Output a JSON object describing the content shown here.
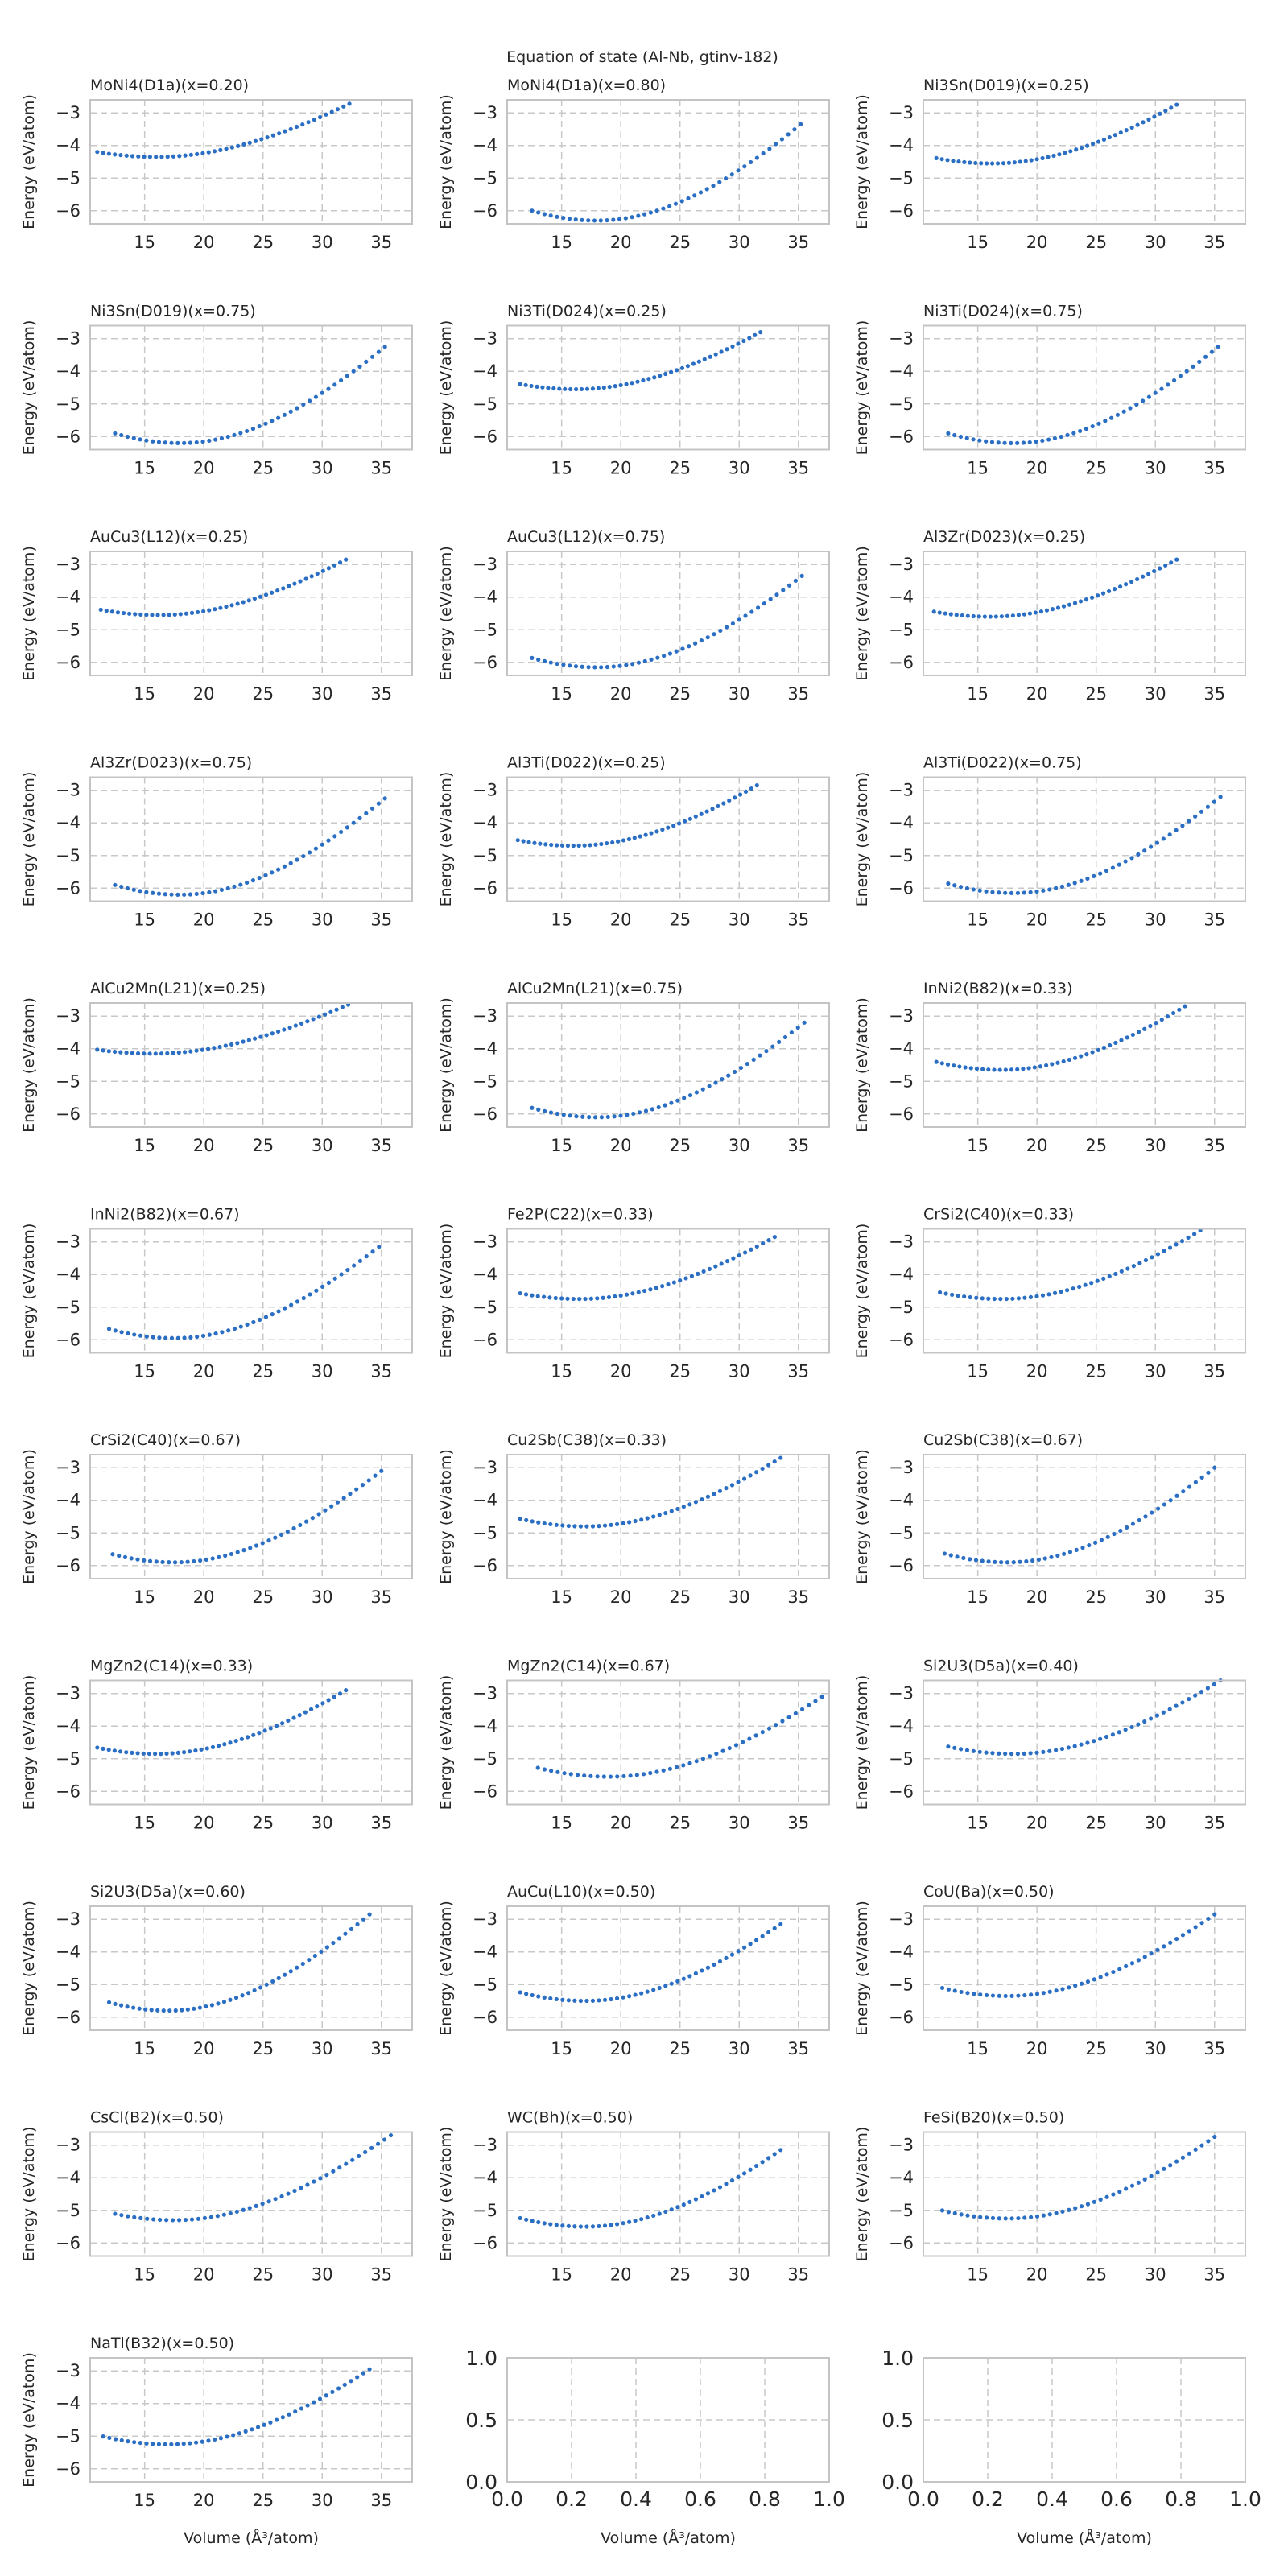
{
  "figure": {
    "suptitle": "Equation of state (Al-Nb, gtinv-182)",
    "xlabel": "Volume (Å³/atom)",
    "ylabel": "Energy (eV/atom)"
  },
  "colors": {
    "series": "#2b6fc4",
    "grid": "#c8c8c8",
    "frame": "#c4c4c4",
    "text": "#262626"
  },
  "chart_data": [
    {
      "type": "scatter",
      "title": "MoNi4(D1a)(x=0.20)",
      "curve": {
        "v0": 16.0,
        "emin": -4.35,
        "vmin": 11.0,
        "vmax": 32.3,
        "emax": -2.72
      },
      "xticks": [
        15,
        20,
        25,
        30,
        35
      ],
      "yticks": [
        -3,
        -4,
        -5,
        -6
      ],
      "xlim": [
        10.4,
        37.6
      ],
      "ylim": [
        -6.4,
        -2.6
      ],
      "xlabel": "",
      "ylabel": "Energy (eV/atom)"
    },
    {
      "type": "scatter",
      "title": "MoNi4(D1a)(x=0.80)",
      "curve": {
        "v0": 18.0,
        "emin": -6.3,
        "vmin": 12.5,
        "vmax": 35.2,
        "emax": -3.35
      },
      "xticks": [
        15,
        20,
        25,
        30,
        35
      ],
      "yticks": [
        -3,
        -4,
        -5,
        -6
      ],
      "xlim": [
        10.4,
        37.6
      ],
      "ylim": [
        -6.4,
        -2.6
      ],
      "xlabel": "",
      "ylabel": "Energy (eV/atom)"
    },
    {
      "type": "scatter",
      "title": "Ni3Sn(D019)(x=0.25)",
      "curve": {
        "v0": 16.2,
        "emin": -4.55,
        "vmin": 11.5,
        "vmax": 31.8,
        "emax": -2.75
      },
      "xticks": [
        15,
        20,
        25,
        30,
        35
      ],
      "yticks": [
        -3,
        -4,
        -5,
        -6
      ],
      "xlim": [
        10.4,
        37.6
      ],
      "ylim": [
        -6.4,
        -2.6
      ],
      "xlabel": "",
      "ylabel": "Energy (eV/atom)"
    },
    {
      "type": "scatter",
      "title": "Ni3Sn(D019)(x=0.75)",
      "curve": {
        "v0": 18.0,
        "emin": -6.2,
        "vmin": 12.5,
        "vmax": 35.3,
        "emax": -3.25
      },
      "xticks": [
        15,
        20,
        25,
        30,
        35
      ],
      "yticks": [
        -3,
        -4,
        -5,
        -6
      ],
      "xlim": [
        10.4,
        37.6
      ],
      "ylim": [
        -6.4,
        -2.6
      ],
      "xlabel": "",
      "ylabel": "Energy (eV/atom)"
    },
    {
      "type": "scatter",
      "title": "Ni3Ti(D024)(x=0.25)",
      "curve": {
        "v0": 16.2,
        "emin": -4.55,
        "vmin": 11.5,
        "vmax": 31.8,
        "emax": -2.8
      },
      "xticks": [
        15,
        20,
        25,
        30,
        35
      ],
      "yticks": [
        -3,
        -4,
        -5,
        -6
      ],
      "xlim": [
        10.4,
        37.6
      ],
      "ylim": [
        -6.4,
        -2.6
      ],
      "xlabel": "",
      "ylabel": "Energy (eV/atom)"
    },
    {
      "type": "scatter",
      "title": "Ni3Ti(D024)(x=0.75)",
      "curve": {
        "v0": 18.0,
        "emin": -6.2,
        "vmin": 12.5,
        "vmax": 35.3,
        "emax": -3.25
      },
      "xticks": [
        15,
        20,
        25,
        30,
        35
      ],
      "yticks": [
        -3,
        -4,
        -5,
        -6
      ],
      "xlim": [
        10.4,
        37.6
      ],
      "ylim": [
        -6.4,
        -2.6
      ],
      "xlabel": "",
      "ylabel": "Energy (eV/atom)"
    },
    {
      "type": "scatter",
      "title": "AuCu3(L12)(x=0.25)",
      "curve": {
        "v0": 16.2,
        "emin": -4.55,
        "vmin": 11.3,
        "vmax": 32.0,
        "emax": -2.85
      },
      "xticks": [
        15,
        20,
        25,
        30,
        35
      ],
      "yticks": [
        -3,
        -4,
        -5,
        -6
      ],
      "xlim": [
        10.4,
        37.6
      ],
      "ylim": [
        -6.4,
        -2.6
      ],
      "xlabel": "",
      "ylabel": "Energy (eV/atom)"
    },
    {
      "type": "scatter",
      "title": "AuCu3(L12)(x=0.75)",
      "curve": {
        "v0": 18.0,
        "emin": -6.15,
        "vmin": 12.5,
        "vmax": 35.3,
        "emax": -3.35
      },
      "xticks": [
        15,
        20,
        25,
        30,
        35
      ],
      "yticks": [
        -3,
        -4,
        -5,
        -6
      ],
      "xlim": [
        10.4,
        37.6
      ],
      "ylim": [
        -6.4,
        -2.6
      ],
      "xlabel": "",
      "ylabel": "Energy (eV/atom)"
    },
    {
      "type": "scatter",
      "title": "Al3Zr(D023)(x=0.25)",
      "curve": {
        "v0": 16.0,
        "emin": -4.6,
        "vmin": 11.3,
        "vmax": 31.8,
        "emax": -2.85
      },
      "xticks": [
        15,
        20,
        25,
        30,
        35
      ],
      "yticks": [
        -3,
        -4,
        -5,
        -6
      ],
      "xlim": [
        10.4,
        37.6
      ],
      "ylim": [
        -6.4,
        -2.6
      ],
      "xlabel": "",
      "ylabel": "Energy (eV/atom)"
    },
    {
      "type": "scatter",
      "title": "Al3Zr(D023)(x=0.75)",
      "curve": {
        "v0": 18.0,
        "emin": -6.2,
        "vmin": 12.5,
        "vmax": 35.3,
        "emax": -3.25
      },
      "xticks": [
        15,
        20,
        25,
        30,
        35
      ],
      "yticks": [
        -3,
        -4,
        -5,
        -6
      ],
      "xlim": [
        10.4,
        37.6
      ],
      "ylim": [
        -6.4,
        -2.6
      ],
      "xlabel": "",
      "ylabel": "Energy (eV/atom)"
    },
    {
      "type": "scatter",
      "title": "Al3Ti(D022)(x=0.25)",
      "curve": {
        "v0": 16.0,
        "emin": -4.7,
        "vmin": 11.3,
        "vmax": 31.5,
        "emax": -2.85
      },
      "xticks": [
        15,
        20,
        25,
        30,
        35
      ],
      "yticks": [
        -3,
        -4,
        -5,
        -6
      ],
      "xlim": [
        10.4,
        37.6
      ],
      "ylim": [
        -6.4,
        -2.6
      ],
      "xlabel": "",
      "ylabel": "Energy (eV/atom)"
    },
    {
      "type": "scatter",
      "title": "Al3Ti(D022)(x=0.75)",
      "curve": {
        "v0": 18.0,
        "emin": -6.15,
        "vmin": 12.5,
        "vmax": 35.5,
        "emax": -3.2
      },
      "xticks": [
        15,
        20,
        25,
        30,
        35
      ],
      "yticks": [
        -3,
        -4,
        -5,
        -6
      ],
      "xlim": [
        10.4,
        37.6
      ],
      "ylim": [
        -6.4,
        -2.6
      ],
      "xlabel": "",
      "ylabel": "Energy (eV/atom)"
    },
    {
      "type": "scatter",
      "title": "AlCu2Mn(L21)(x=0.25)",
      "curve": {
        "v0": 15.7,
        "emin": -4.15,
        "vmin": 11.0,
        "vmax": 32.2,
        "emax": -2.65
      },
      "xticks": [
        15,
        20,
        25,
        30,
        35
      ],
      "yticks": [
        -3,
        -4,
        -5,
        -6
      ],
      "xlim": [
        10.4,
        37.6
      ],
      "ylim": [
        -6.4,
        -2.6
      ],
      "xlabel": "",
      "ylabel": "Energy (eV/atom)"
    },
    {
      "type": "scatter",
      "title": "AlCu2Mn(L21)(x=0.75)",
      "curve": {
        "v0": 18.0,
        "emin": -6.1,
        "vmin": 12.5,
        "vmax": 35.5,
        "emax": -3.2
      },
      "xticks": [
        15,
        20,
        25,
        30,
        35
      ],
      "yticks": [
        -3,
        -4,
        -5,
        -6
      ],
      "xlim": [
        10.4,
        37.6
      ],
      "ylim": [
        -6.4,
        -2.6
      ],
      "xlabel": "",
      "ylabel": "Energy (eV/atom)"
    },
    {
      "type": "scatter",
      "title": "InNi2(B82)(x=0.33)",
      "curve": {
        "v0": 17.0,
        "emin": -4.65,
        "vmin": 11.5,
        "vmax": 32.5,
        "emax": -2.7
      },
      "xticks": [
        15,
        20,
        25,
        30,
        35
      ],
      "yticks": [
        -3,
        -4,
        -5,
        -6
      ],
      "xlim": [
        10.4,
        37.6
      ],
      "ylim": [
        -6.4,
        -2.6
      ],
      "xlabel": "",
      "ylabel": "Energy (eV/atom)"
    },
    {
      "type": "scatter",
      "title": "InNi2(B82)(x=0.67)",
      "curve": {
        "v0": 17.5,
        "emin": -5.95,
        "vmin": 12.0,
        "vmax": 34.8,
        "emax": -3.15
      },
      "xticks": [
        15,
        20,
        25,
        30,
        35
      ],
      "yticks": [
        -3,
        -4,
        -5,
        -6
      ],
      "xlim": [
        10.4,
        37.6
      ],
      "ylim": [
        -6.4,
        -2.6
      ],
      "xlabel": "",
      "ylabel": "Energy (eV/atom)"
    },
    {
      "type": "scatter",
      "title": "Fe2P(C22)(x=0.33)",
      "curve": {
        "v0": 16.5,
        "emin": -4.75,
        "vmin": 11.5,
        "vmax": 33.0,
        "emax": -2.85
      },
      "xticks": [
        15,
        20,
        25,
        30,
        35
      ],
      "yticks": [
        -3,
        -4,
        -5,
        -6
      ],
      "xlim": [
        10.4,
        37.6
      ],
      "ylim": [
        -6.4,
        -2.6
      ],
      "xlabel": "",
      "ylabel": "Energy (eV/atom)"
    },
    {
      "type": "scatter",
      "title": "CrSi2(C40)(x=0.33)",
      "curve": {
        "v0": 17.0,
        "emin": -4.75,
        "vmin": 11.8,
        "vmax": 33.8,
        "emax": -2.65
      },
      "xticks": [
        15,
        20,
        25,
        30,
        35
      ],
      "yticks": [
        -3,
        -4,
        -5,
        -6
      ],
      "xlim": [
        10.4,
        37.6
      ],
      "ylim": [
        -6.4,
        -2.6
      ],
      "xlabel": "",
      "ylabel": "Energy (eV/atom)"
    },
    {
      "type": "scatter",
      "title": "CrSi2(C40)(x=0.67)",
      "curve": {
        "v0": 17.5,
        "emin": -5.9,
        "vmin": 12.3,
        "vmax": 35.0,
        "emax": -3.1
      },
      "xticks": [
        15,
        20,
        25,
        30,
        35
      ],
      "yticks": [
        -3,
        -4,
        -5,
        -6
      ],
      "xlim": [
        10.4,
        37.6
      ],
      "ylim": [
        -6.4,
        -2.6
      ],
      "xlabel": "",
      "ylabel": "Energy (eV/atom)"
    },
    {
      "type": "scatter",
      "title": "Cu2Sb(C38)(x=0.33)",
      "curve": {
        "v0": 17.0,
        "emin": -4.8,
        "vmin": 11.5,
        "vmax": 33.5,
        "emax": -2.7
      },
      "xticks": [
        15,
        20,
        25,
        30,
        35
      ],
      "yticks": [
        -3,
        -4,
        -5,
        -6
      ],
      "xlim": [
        10.4,
        37.6
      ],
      "ylim": [
        -6.4,
        -2.6
      ],
      "xlabel": "",
      "ylabel": "Energy (eV/atom)"
    },
    {
      "type": "scatter",
      "title": "Cu2Sb(C38)(x=0.67)",
      "curve": {
        "v0": 17.5,
        "emin": -5.9,
        "vmin": 12.2,
        "vmax": 35.0,
        "emax": -3.0
      },
      "xticks": [
        15,
        20,
        25,
        30,
        35
      ],
      "yticks": [
        -3,
        -4,
        -5,
        -6
      ],
      "xlim": [
        10.4,
        37.6
      ],
      "ylim": [
        -6.4,
        -2.6
      ],
      "xlabel": "",
      "ylabel": "Energy (eV/atom)"
    },
    {
      "type": "scatter",
      "title": "MgZn2(C14)(x=0.33)",
      "curve": {
        "v0": 16.0,
        "emin": -4.85,
        "vmin": 11.0,
        "vmax": 32.0,
        "emax": -2.9
      },
      "xticks": [
        15,
        20,
        25,
        30,
        35
      ],
      "yticks": [
        -3,
        -4,
        -5,
        -6
      ],
      "xlim": [
        10.4,
        37.6
      ],
      "ylim": [
        -6.4,
        -2.6
      ],
      "xlabel": "",
      "ylabel": "Energy (eV/atom)"
    },
    {
      "type": "scatter",
      "title": "MgZn2(C14)(x=0.67)",
      "curve": {
        "v0": 19.0,
        "emin": -5.55,
        "vmin": 13.0,
        "vmax": 37.0,
        "emax": -3.1
      },
      "xticks": [
        15,
        20,
        25,
        30,
        35
      ],
      "yticks": [
        -3,
        -4,
        -5,
        -6
      ],
      "xlim": [
        10.4,
        37.6
      ],
      "ylim": [
        -6.4,
        -2.6
      ],
      "xlabel": "",
      "ylabel": "Energy (eV/atom)"
    },
    {
      "type": "scatter",
      "title": "Si2U3(D5a)(x=0.40)",
      "curve": {
        "v0": 18.0,
        "emin": -4.85,
        "vmin": 12.5,
        "vmax": 35.5,
        "emax": -2.6
      },
      "xticks": [
        15,
        20,
        25,
        30,
        35
      ],
      "yticks": [
        -3,
        -4,
        -5,
        -6
      ],
      "xlim": [
        10.4,
        37.6
      ],
      "ylim": [
        -6.4,
        -2.6
      ],
      "xlabel": "",
      "ylabel": "Energy (eV/atom)"
    },
    {
      "type": "scatter",
      "title": "Si2U3(D5a)(x=0.60)",
      "curve": {
        "v0": 17.0,
        "emin": -5.8,
        "vmin": 12.0,
        "vmax": 34.0,
        "emax": -2.85
      },
      "xticks": [
        15,
        20,
        25,
        30,
        35
      ],
      "yticks": [
        -3,
        -4,
        -5,
        -6
      ],
      "xlim": [
        10.4,
        37.6
      ],
      "ylim": [
        -6.4,
        -2.6
      ],
      "xlabel": "",
      "ylabel": "Energy (eV/atom)"
    },
    {
      "type": "scatter",
      "title": "AuCu(L10)(x=0.50)",
      "curve": {
        "v0": 17.0,
        "emin": -5.5,
        "vmin": 11.5,
        "vmax": 33.5,
        "emax": -3.15
      },
      "xticks": [
        15,
        20,
        25,
        30,
        35
      ],
      "yticks": [
        -3,
        -4,
        -5,
        -6
      ],
      "xlim": [
        10.4,
        37.6
      ],
      "ylim": [
        -6.4,
        -2.6
      ],
      "xlabel": "",
      "ylabel": "Energy (eV/atom)"
    },
    {
      "type": "scatter",
      "title": "CoU(Ba)(x=0.50)",
      "curve": {
        "v0": 17.5,
        "emin": -5.35,
        "vmin": 12.0,
        "vmax": 35.0,
        "emax": -2.85
      },
      "xticks": [
        15,
        20,
        25,
        30,
        35
      ],
      "yticks": [
        -3,
        -4,
        -5,
        -6
      ],
      "xlim": [
        10.4,
        37.6
      ],
      "ylim": [
        -6.4,
        -2.6
      ],
      "xlabel": "",
      "ylabel": "Energy (eV/atom)"
    },
    {
      "type": "scatter",
      "title": "CsCl(B2)(x=0.50)",
      "curve": {
        "v0": 17.5,
        "emin": -5.3,
        "vmin": 12.5,
        "vmax": 35.8,
        "emax": -2.7
      },
      "xticks": [
        15,
        20,
        25,
        30,
        35
      ],
      "yticks": [
        -3,
        -4,
        -5,
        -6
      ],
      "xlim": [
        10.4,
        37.6
      ],
      "ylim": [
        -6.4,
        -2.6
      ],
      "xlabel": "",
      "ylabel": "Energy (eV/atom)"
    },
    {
      "type": "scatter",
      "title": "WC(Bh)(x=0.50)",
      "curve": {
        "v0": 17.0,
        "emin": -5.5,
        "vmin": 11.5,
        "vmax": 33.5,
        "emax": -3.15
      },
      "xticks": [
        15,
        20,
        25,
        30,
        35
      ],
      "yticks": [
        -3,
        -4,
        -5,
        -6
      ],
      "xlim": [
        10.4,
        37.6
      ],
      "ylim": [
        -6.4,
        -2.6
      ],
      "xlabel": "",
      "ylabel": "Energy (eV/atom)"
    },
    {
      "type": "scatter",
      "title": "FeSi(B20)(x=0.50)",
      "curve": {
        "v0": 17.5,
        "emin": -5.25,
        "vmin": 12.0,
        "vmax": 35.0,
        "emax": -2.75
      },
      "xticks": [
        15,
        20,
        25,
        30,
        35
      ],
      "yticks": [
        -3,
        -4,
        -5,
        -6
      ],
      "xlim": [
        10.4,
        37.6
      ],
      "ylim": [
        -6.4,
        -2.6
      ],
      "xlabel": "",
      "ylabel": "Energy (eV/atom)"
    },
    {
      "type": "scatter",
      "title": "NaTl(B32)(x=0.50)",
      "curve": {
        "v0": 17.0,
        "emin": -5.25,
        "vmin": 11.5,
        "vmax": 34.0,
        "emax": -2.95
      },
      "xticks": [
        15,
        20,
        25,
        30,
        35
      ],
      "yticks": [
        -3,
        -4,
        -5,
        -6
      ],
      "xlim": [
        10.4,
        37.6
      ],
      "ylim": [
        -6.4,
        -2.6
      ],
      "xlabel": "Volume (Å³/atom)",
      "ylabel": "Energy (eV/atom)"
    },
    {
      "type": "scatter",
      "title": "",
      "empty": true,
      "xticks": [
        "0.0",
        "0.2",
        "0.4",
        "0.6",
        "0.8",
        "1.0"
      ],
      "yticks": [
        "0.0",
        "0.5",
        "1.0"
      ],
      "xlim": [
        0,
        1
      ],
      "ylim": [
        0,
        1
      ],
      "xlabel": "Volume (Å³/atom)",
      "ylabel": ""
    },
    {
      "type": "scatter",
      "title": "",
      "empty": true,
      "xticks": [
        "0.0",
        "0.2",
        "0.4",
        "0.6",
        "0.8",
        "1.0"
      ],
      "yticks": [
        "0.0",
        "0.5",
        "1.0"
      ],
      "xlim": [
        0,
        1
      ],
      "ylim": [
        0,
        1
      ],
      "xlabel": "Volume (Å³/atom)",
      "ylabel": ""
    }
  ]
}
